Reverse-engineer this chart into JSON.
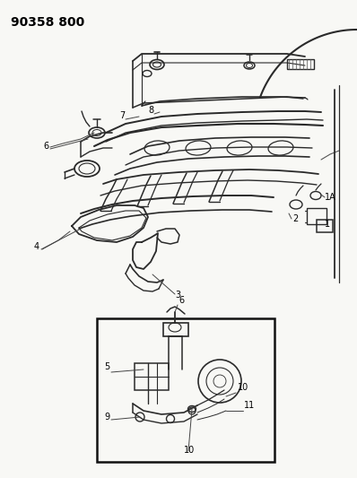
{
  "title": "90358 800",
  "bg": "#f5f5f0",
  "lc": "#2a2a2a",
  "fw": 3.98,
  "fh": 5.33,
  "dpi": 100
}
